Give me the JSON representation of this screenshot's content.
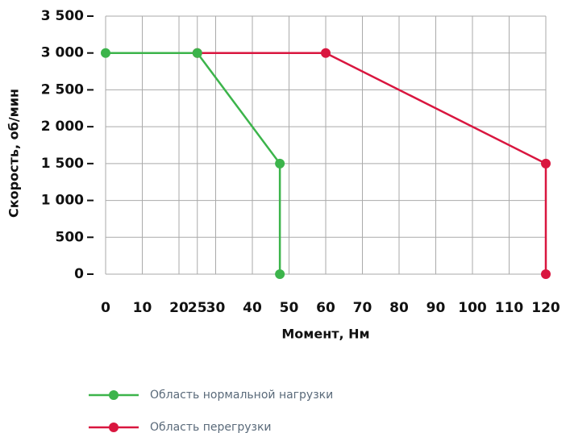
{
  "chart_data": {
    "type": "line",
    "xlabel": "Момент, Нм",
    "ylabel": "Скорость, об/мин",
    "xlim": [
      0,
      120
    ],
    "xticks": [
      0,
      10,
      20,
      25,
      30,
      40,
      50,
      60,
      70,
      80,
      90,
      100,
      110,
      120
    ],
    "ylim": [
      0,
      3500
    ],
    "yticks": [
      0,
      500,
      {
        "value": 1000,
        "label": "1 000"
      },
      {
        "value": 1500,
        "label": "1 500"
      },
      {
        "value": 2000,
        "label": "2 000"
      },
      {
        "value": 2500,
        "label": "2 500"
      },
      {
        "value": 3000,
        "label": "3 000"
      },
      {
        "value": 3500,
        "label": "3 500"
      }
    ],
    "grid": true,
    "series": [
      {
        "name": "Область нормальной нагрузки",
        "color": "#3cb44b",
        "x": [
          0,
          25,
          47.5,
          47.5
        ],
        "values": [
          3000,
          3000,
          1500,
          0
        ]
      },
      {
        "name": "Область перегрузки",
        "color": "#d9163f",
        "x": [
          25,
          60,
          120,
          120
        ],
        "values": [
          3000,
          3000,
          1500,
          0
        ]
      }
    ]
  }
}
